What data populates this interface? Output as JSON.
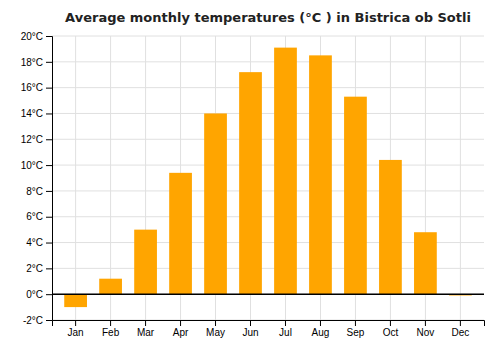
{
  "chart_data": {
    "type": "bar",
    "title": "Average monthly temperatures (°C ) in Bistrica ob Sotli",
    "categories": [
      "Jan",
      "Feb",
      "Mar",
      "Apr",
      "May",
      "Jun",
      "Jul",
      "Aug",
      "Sep",
      "Oct",
      "Nov",
      "Dec"
    ],
    "values": [
      -1.0,
      1.2,
      5.0,
      9.4,
      14.0,
      17.2,
      19.1,
      18.5,
      15.3,
      10.4,
      4.8,
      -0.1
    ],
    "color": "#FFA500",
    "ylim": [
      -2,
      20
    ],
    "yticks": [
      {
        "value": -2,
        "label": "-2°C"
      },
      {
        "value": 0,
        "label": "0°C"
      },
      {
        "value": 2,
        "label": "2°C"
      },
      {
        "value": 4,
        "label": "4°C"
      },
      {
        "value": 6,
        "label": "6°C"
      },
      {
        "value": 8,
        "label": "8°C"
      },
      {
        "value": 10,
        "label": "10°C"
      },
      {
        "value": 12,
        "label": "12°C"
      },
      {
        "value": 14,
        "label": "14°C"
      },
      {
        "value": 16,
        "label": "16°C"
      },
      {
        "value": 18,
        "label": "18°C"
      },
      {
        "value": 20,
        "label": "20°C"
      }
    ],
    "grid": true
  }
}
